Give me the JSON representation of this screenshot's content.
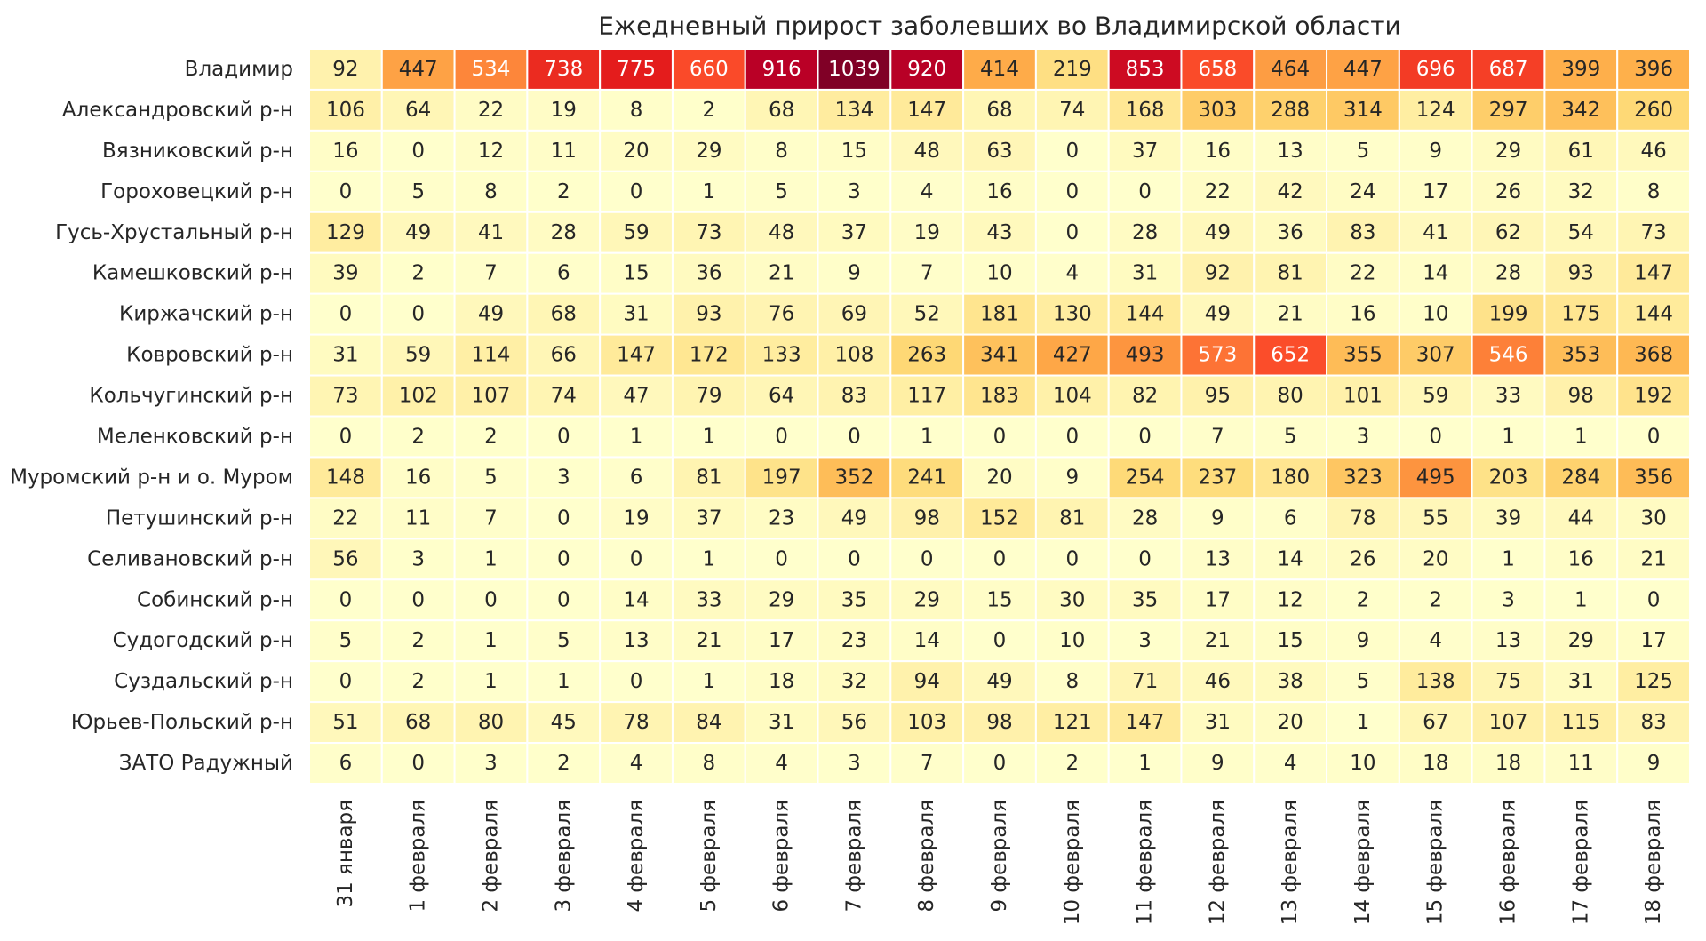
{
  "chart_data": {
    "type": "heatmap",
    "title": "Ежедневный прирост заболевших во Владимирской области",
    "columns": [
      "31 января",
      "1 февраля",
      "2 февраля",
      "3 февраля",
      "4 февраля",
      "5 февраля",
      "6 февраля",
      "7 февраля",
      "8 февраля",
      "9 февраля",
      "10 февраля",
      "11 февраля",
      "12 февраля",
      "13 февраля",
      "14 февраля",
      "15 февраля",
      "16 февраля",
      "17 февраля",
      "18 февраля"
    ],
    "rows": [
      "Владимир",
      "Александровский р-н",
      "Вязниковский р-н",
      "Гороховецкий р-н",
      "Гусь-Хрустальный р-н",
      "Камешковский р-н",
      "Киржачский р-н",
      "Ковровский р-н",
      "Кольчугинский р-н",
      "Меленковский р-н",
      "Муромский р-н и о. Муром",
      "Петушинский р-н",
      "Селивановский р-н",
      "Собинский р-н",
      "Судогодский р-н",
      "Суздальский р-н",
      "Юрьев-Польский р-н",
      "ЗАТО Радужный"
    ],
    "values": [
      [
        92,
        447,
        534,
        738,
        775,
        660,
        916,
        1039,
        920,
        414,
        219,
        853,
        658,
        464,
        447,
        696,
        687,
        399,
        396
      ],
      [
        106,
        64,
        22,
        19,
        8,
        2,
        68,
        134,
        147,
        68,
        74,
        168,
        303,
        288,
        314,
        124,
        297,
        342,
        260
      ],
      [
        16,
        0,
        12,
        11,
        20,
        29,
        8,
        15,
        48,
        63,
        0,
        37,
        16,
        13,
        5,
        9,
        29,
        61,
        46
      ],
      [
        0,
        5,
        8,
        2,
        0,
        1,
        5,
        3,
        4,
        16,
        0,
        0,
        22,
        42,
        24,
        17,
        26,
        32,
        8
      ],
      [
        129,
        49,
        41,
        28,
        59,
        73,
        48,
        37,
        19,
        43,
        0,
        28,
        49,
        36,
        83,
        41,
        62,
        54,
        73
      ],
      [
        39,
        2,
        7,
        6,
        15,
        36,
        21,
        9,
        7,
        10,
        4,
        31,
        92,
        81,
        22,
        14,
        28,
        93,
        147
      ],
      [
        0,
        0,
        49,
        68,
        31,
        93,
        76,
        69,
        52,
        181,
        130,
        144,
        49,
        21,
        16,
        10,
        199,
        175,
        144
      ],
      [
        31,
        59,
        114,
        66,
        147,
        172,
        133,
        108,
        263,
        341,
        427,
        493,
        573,
        652,
        355,
        307,
        546,
        353,
        368
      ],
      [
        73,
        102,
        107,
        74,
        47,
        79,
        64,
        83,
        117,
        183,
        104,
        82,
        95,
        80,
        101,
        59,
        33,
        98,
        192
      ],
      [
        0,
        2,
        2,
        0,
        1,
        1,
        0,
        0,
        1,
        0,
        0,
        0,
        7,
        5,
        3,
        0,
        1,
        1,
        0
      ],
      [
        148,
        16,
        5,
        3,
        6,
        81,
        197,
        352,
        241,
        20,
        9,
        254,
        237,
        180,
        323,
        495,
        203,
        284,
        356
      ],
      [
        22,
        11,
        7,
        0,
        19,
        37,
        23,
        49,
        98,
        152,
        81,
        28,
        9,
        6,
        78,
        55,
        39,
        44,
        30
      ],
      [
        56,
        3,
        1,
        0,
        0,
        1,
        0,
        0,
        0,
        0,
        0,
        0,
        13,
        14,
        26,
        20,
        1,
        16,
        21
      ],
      [
        0,
        0,
        0,
        0,
        14,
        33,
        29,
        35,
        29,
        15,
        30,
        35,
        17,
        12,
        2,
        2,
        3,
        1,
        0
      ],
      [
        5,
        2,
        1,
        5,
        13,
        21,
        17,
        23,
        14,
        0,
        10,
        3,
        21,
        15,
        9,
        4,
        13,
        29,
        17
      ],
      [
        0,
        2,
        1,
        1,
        0,
        1,
        18,
        32,
        94,
        49,
        8,
        71,
        46,
        38,
        5,
        138,
        75,
        31,
        125
      ],
      [
        51,
        68,
        80,
        45,
        78,
        84,
        31,
        56,
        103,
        98,
        121,
        147,
        31,
        20,
        1,
        67,
        107,
        115,
        83
      ],
      [
        6,
        0,
        3,
        2,
        4,
        8,
        4,
        3,
        7,
        0,
        2,
        1,
        9,
        4,
        10,
        18,
        18,
        11,
        9
      ]
    ],
    "colormap": [
      "#ffffcc",
      "#ffeda0",
      "#fed976",
      "#feb24c",
      "#fd8d3c",
      "#fc4e2a",
      "#e31a1c",
      "#bd0026",
      "#800026"
    ]
  }
}
